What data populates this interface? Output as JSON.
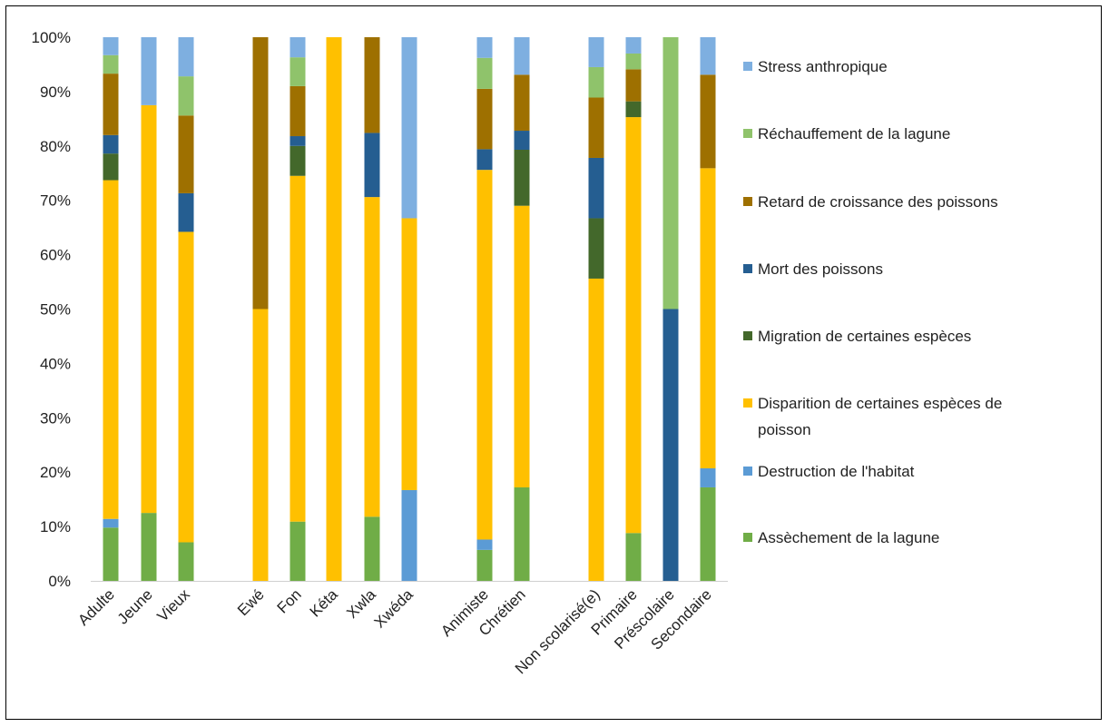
{
  "chart_data": {
    "type": "bar",
    "stacked": "percent",
    "title": "",
    "xlabel": "",
    "ylabel": "",
    "ylim": [
      0,
      100
    ],
    "y_ticks": [
      "0%",
      "10%",
      "20%",
      "30%",
      "40%",
      "50%",
      "60%",
      "70%",
      "80%",
      "90%",
      "100%"
    ],
    "grid": false,
    "legend_position": "right",
    "categories": [
      "Adulte",
      "Jeune",
      "Vieux",
      "Ewé",
      "Fon",
      "Kéta",
      "Xwla",
      "Xwéda",
      "Animiste",
      "Chrétien",
      "Non scolarisé(e)",
      "Primaire",
      "Préscolaire",
      "Secondaire"
    ],
    "groups": [
      [
        "Adulte",
        "Jeune",
        "Vieux"
      ],
      [
        "Ewé",
        "Fon",
        "Kéta",
        "Xwla",
        "Xwéda"
      ],
      [
        "Animiste",
        "Chrétien"
      ],
      [
        "Non scolarisé(e)",
        "Primaire",
        "Préscolaire",
        "Secondaire"
      ]
    ],
    "series": [
      {
        "name": "Assèchement de la lagune",
        "color": "#70AD47",
        "values": [
          9.8,
          12.5,
          7.1,
          0,
          10.9,
          0,
          11.8,
          0,
          5.7,
          17.2,
          0,
          8.8,
          0,
          17.2
        ]
      },
      {
        "name": "Destruction de l'habitat",
        "color": "#5B9BD5",
        "values": [
          1.6,
          0,
          0,
          0,
          0,
          0,
          0,
          16.7,
          1.9,
          0,
          0,
          0,
          0,
          3.5
        ]
      },
      {
        "name": "Disparition de certaines espèces de poisson",
        "color": "#FFC000",
        "values": [
          62.3,
          75.0,
          57.1,
          50.0,
          63.6,
          100,
          58.8,
          50.0,
          68.0,
          51.8,
          55.6,
          76.5,
          0,
          55.2
        ]
      },
      {
        "name": "Migration de certaines espèces",
        "color": "#43682B",
        "values": [
          4.9,
          0,
          0,
          0,
          5.5,
          0,
          0,
          0,
          0,
          10.3,
          11.1,
          2.9,
          0,
          0
        ]
      },
      {
        "name": "Mort des poissons",
        "color": "#255E91",
        "values": [
          3.4,
          0,
          7.1,
          0,
          1.8,
          0,
          11.8,
          0,
          3.8,
          3.5,
          11.1,
          0,
          50.0,
          0
        ]
      },
      {
        "name": "Retard de croissance des poissons",
        "color": "#9E7000",
        "values": [
          11.3,
          0,
          14.3,
          50.0,
          9.2,
          0,
          17.6,
          0,
          11.1,
          10.3,
          11.1,
          5.9,
          0,
          17.2
        ]
      },
      {
        "name": "Réchauffement de la lagune",
        "color": "#8FC36B",
        "values": [
          3.4,
          0,
          7.2,
          0,
          5.3,
          0,
          0,
          0,
          5.7,
          0,
          5.6,
          2.9,
          50.0,
          0
        ]
      },
      {
        "name": "Stress anthropique",
        "color": "#7EAFE0",
        "values": [
          3.3,
          12.5,
          7.2,
          0,
          3.7,
          0,
          0,
          33.3,
          3.8,
          6.9,
          5.5,
          3.0,
          0,
          6.9
        ]
      }
    ]
  },
  "legend": {
    "entries": [
      {
        "label": "Stress anthropique",
        "color": "#7EAFE0"
      },
      {
        "label": "Réchauffement de la lagune",
        "color": "#8FC36B"
      },
      {
        "label": "Retard de croissance des poissons",
        "color": "#9E7000"
      },
      {
        "label": "Mort des poissons",
        "color": "#255E91"
      },
      {
        "label": "Migration de certaines espèces",
        "color": "#43682B"
      },
      {
        "label": "Disparition de certaines espèces de",
        "label_line2": "poisson",
        "color": "#FFC000"
      },
      {
        "label": "Destruction de l'habitat",
        "color": "#5B9BD5"
      },
      {
        "label": "Assèchement de la lagune",
        "color": "#70AD47"
      }
    ]
  }
}
